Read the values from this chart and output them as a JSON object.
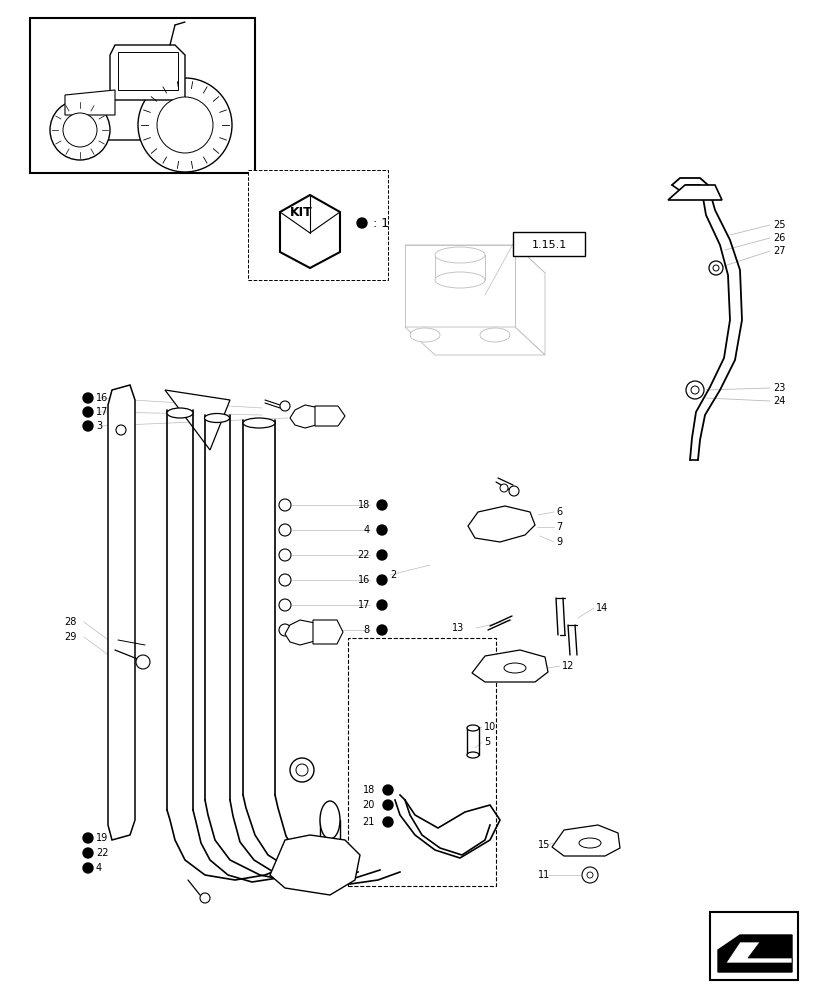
{
  "bg_color": "#ffffff",
  "line_color": "#000000",
  "gray_color": "#bbbbbb",
  "fig_width": 8.28,
  "fig_height": 10.0,
  "dpi": 100
}
